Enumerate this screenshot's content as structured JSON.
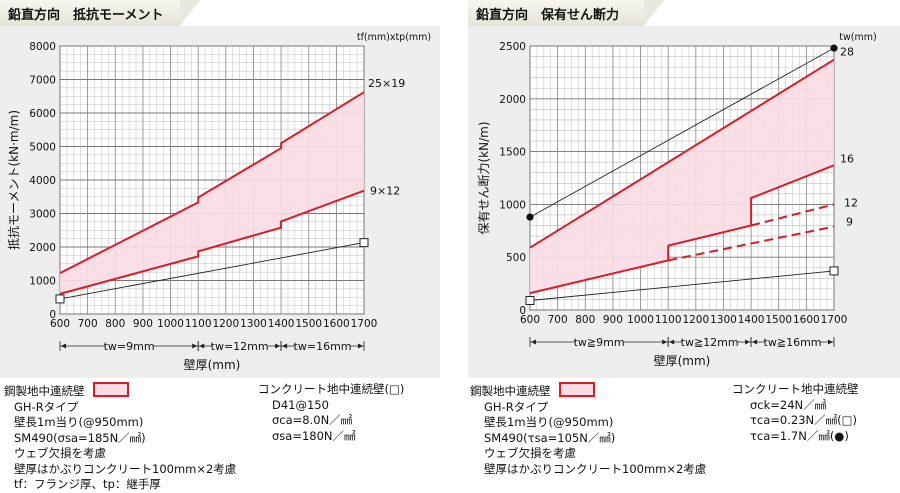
{
  "left": {
    "tab_title": "鉛直方向　抵抗モーメント",
    "chart_data": {
      "type": "line",
      "title": "",
      "xlabel": "壁厚(mm)",
      "ylabel": "抵抗モーメント(kN·m/m)",
      "unit_label": "tf(mm)xtp(mm)",
      "xlim": [
        600,
        1700
      ],
      "ylim": [
        0,
        8000
      ],
      "x_ticks": [
        600,
        700,
        800,
        900,
        1000,
        1100,
        1200,
        1300,
        1400,
        1500,
        1600,
        1700
      ],
      "y_ticks": [
        0,
        1000,
        2000,
        3000,
        4000,
        5000,
        6000,
        7000,
        8000
      ],
      "band_color": "#f9dbe4",
      "upper_color": "#d41f2a",
      "lower_color": "#222222",
      "series": [
        {
          "name": "25×19",
          "style": "red",
          "points": [
            [
              600,
              1220
            ],
            [
              1100,
              3330
            ],
            [
              1100,
              3480
            ],
            [
              1400,
              4950
            ],
            [
              1400,
              5100
            ],
            [
              1700,
              6620
            ]
          ]
        },
        {
          "name": "9×12",
          "style": "red",
          "points": [
            [
              600,
              600
            ],
            [
              1100,
              1720
            ],
            [
              1100,
              1870
            ],
            [
              1400,
              2580
            ],
            [
              1400,
              2760
            ],
            [
              1700,
              3680
            ]
          ]
        },
        {
          "name": "",
          "style": "black",
          "points": [
            [
              600,
              450
            ],
            [
              1700,
              2130
            ]
          ]
        }
      ],
      "markers": [
        {
          "x": 600,
          "y": 450,
          "shape": "square"
        },
        {
          "x": 1700,
          "y": 2130,
          "shape": "square"
        }
      ],
      "ranges": [
        {
          "from": 600,
          "to": 1100,
          "label": "tw=9mm"
        },
        {
          "from": 1100,
          "to": 1400,
          "label": "tw=12mm"
        },
        {
          "from": 1400,
          "to": 1700,
          "label": "tw=16mm"
        }
      ]
    },
    "legend": {
      "steel_title": "鋼製地中連続壁",
      "steel_lines": [
        "GH-Rタイプ",
        "壁長1m当り(@950mm)",
        "SM490(σsa=185N／㎟)",
        "ウェブ欠損を考慮",
        "壁厚はかぶりコンクリート100mm×2考慮",
        "tf：フランジ厚、tp：継手厚"
      ],
      "concrete_title": "コンクリート地中連続壁(□)",
      "concrete_lines": [
        "D41@150",
        "σca=8.0N／㎟",
        "σsa=180N／㎟"
      ]
    }
  },
  "right": {
    "tab_title": "鉛直方向　保有せん断力",
    "chart_data": {
      "type": "line",
      "title": "",
      "xlabel": "壁厚(mm)",
      "ylabel": "保有せん断力(kN/m)",
      "unit_label": "tw(mm)",
      "xlim": [
        600,
        1700
      ],
      "ylim": [
        0,
        2500
      ],
      "x_ticks": [
        600,
        700,
        800,
        900,
        1000,
        1100,
        1200,
        1300,
        1400,
        1500,
        1600,
        1700
      ],
      "y_ticks": [
        0,
        500,
        1000,
        1500,
        2000,
        2500
      ],
      "band_color": "#f9dbe4",
      "series": [
        {
          "name": "28",
          "style": "red",
          "points": [
            [
              600,
              590
            ],
            [
              1700,
              2370
            ]
          ]
        },
        {
          "name": "16",
          "style": "red",
          "points": [
            [
              600,
              160
            ],
            [
              1100,
              470
            ],
            [
              1100,
              610
            ],
            [
              1400,
              800
            ],
            [
              1400,
              1060
            ],
            [
              1700,
              1370
            ]
          ]
        },
        {
          "name": "12",
          "style": "red-dashed",
          "points": [
            [
              1400,
              800
            ],
            [
              1700,
              1000
            ]
          ]
        },
        {
          "name": "9",
          "style": "red-dashed",
          "points": [
            [
              1100,
              470
            ],
            [
              1700,
              790
            ]
          ]
        },
        {
          "name": "",
          "style": "black",
          "points": [
            [
              600,
              880
            ],
            [
              1700,
              2480
            ]
          ]
        },
        {
          "name": "",
          "style": "black",
          "points": [
            [
              600,
              90
            ],
            [
              1700,
              370
            ]
          ]
        }
      ],
      "markers": [
        {
          "x": 600,
          "y": 880,
          "shape": "dot"
        },
        {
          "x": 1700,
          "y": 2480,
          "shape": "dot"
        },
        {
          "x": 600,
          "y": 90,
          "shape": "square"
        },
        {
          "x": 1700,
          "y": 370,
          "shape": "square"
        }
      ],
      "ranges": [
        {
          "from": 600,
          "to": 1100,
          "label": "tw≧9mm"
        },
        {
          "from": 1100,
          "to": 1400,
          "label": "tw≧12mm"
        },
        {
          "from": 1400,
          "to": 1700,
          "label": "tw≧16mm"
        }
      ]
    },
    "legend": {
      "steel_title": "鋼製地中連続壁",
      "steel_lines": [
        "GH-Rタイプ",
        "壁長1m当り(@950mm)",
        "SM490(τsa=105N／㎟)",
        "ウェブ欠損を考慮",
        "壁厚はかぶりコンクリート100mm×2考慮"
      ],
      "concrete_title": "コンクリート地中連続壁",
      "concrete_lines": [
        "σck=24N／㎟",
        "τca=0.23N／㎟(□)",
        "τca=1.7N／㎟(●)"
      ]
    }
  }
}
